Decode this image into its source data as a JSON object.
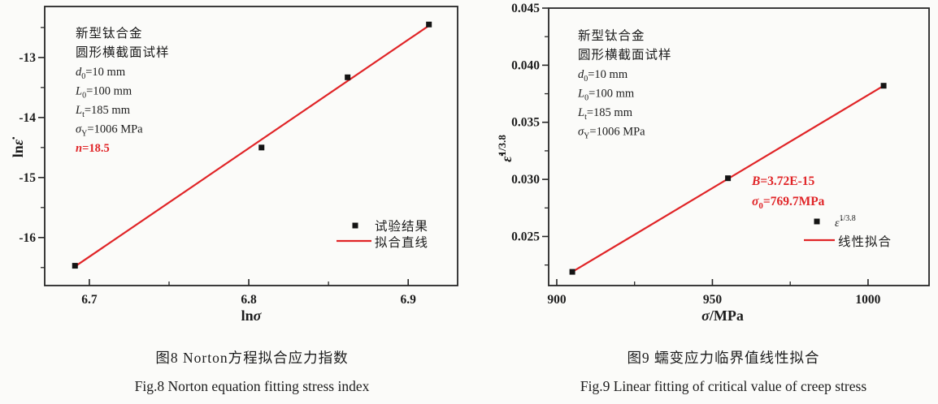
{
  "colors": {
    "accent_red": "#e02427",
    "marker_black": "#141414",
    "frame": "#262626",
    "text": "#1c1c1c"
  },
  "figures": [
    {
      "caption_cn": "图8  Norton方程拟合应力指数",
      "caption_en": "Fig.8  Norton equation fitting stress index"
    },
    {
      "caption_cn": "图9  蠕变应力临界值线性拟合",
      "caption_en": "Fig.9  Linear fitting of critical value of creep stress"
    }
  ],
  "chart_data": [
    {
      "type": "scatter",
      "title": "图8 Norton方程拟合应力指数",
      "xlabel": "lnσ",
      "ylabel": "lnε̇",
      "xlim": [
        6.672,
        6.931
      ],
      "ylim": [
        -16.8,
        -12.15
      ],
      "grid": false,
      "xticks": {
        "values": [
          6.7,
          6.8,
          6.9
        ],
        "labels": [
          "6.7",
          "6.8",
          "6.9"
        ],
        "minor": [
          6.75,
          6.85
        ]
      },
      "yticks": {
        "values": [
          -13,
          -14,
          -15,
          -16
        ],
        "labels": [
          "-13",
          "-14",
          "-15",
          "-16"
        ],
        "minor": [
          -12.5,
          -13.5,
          -14.5,
          -15.5,
          -16.5
        ]
      },
      "xlabel_segs": [
        {
          "t": "ln",
          "bd": 1
        },
        {
          "t": "σ",
          "bd": 1,
          "it": 1
        }
      ],
      "ylabel_segs": [
        {
          "t": "ln",
          "bd": 1
        },
        {
          "t": "ε̇",
          "bd": 1,
          "it": 1
        }
      ],
      "series": [
        {
          "name": "试验结果",
          "kind": "scatter",
          "marker": "square",
          "color": "#141414",
          "x": [
            6.691,
            6.808,
            6.862,
            6.913
          ],
          "y": [
            -16.47,
            -14.5,
            -13.33,
            -12.45
          ]
        },
        {
          "name": "拟合直线",
          "kind": "line",
          "color": "#e02427",
          "x": [
            6.69,
            6.9135
          ],
          "y": [
            -16.5,
            -12.46
          ]
        }
      ],
      "fit_parameter": "n=18.5",
      "info_lines": [
        {
          "cn": 1,
          "segs": [
            {
              "t": "新型钛合金"
            }
          ]
        },
        {
          "cn": 1,
          "segs": [
            {
              "t": "圆形横截面试样"
            }
          ]
        },
        {
          "segs": [
            {
              "t": "d",
              "it": 1
            },
            {
              "t": "0",
              "sub": 1
            },
            {
              "t": "=10 mm"
            }
          ]
        },
        {
          "segs": [
            {
              "t": "L",
              "it": 1
            },
            {
              "t": "0",
              "sub": 1
            },
            {
              "t": "=100 mm"
            }
          ]
        },
        {
          "segs": [
            {
              "t": "L",
              "it": 1
            },
            {
              "t": "t",
              "sub": 1
            },
            {
              "t": "=185 mm"
            }
          ]
        },
        {
          "segs": [
            {
              "t": "σ",
              "it": 1
            },
            {
              "t": "Y",
              "sub": 1
            },
            {
              "t": "=1006 MPa"
            }
          ]
        },
        {
          "color": "#e02427",
          "segs": [
            {
              "t": "n",
              "it": 1,
              "bd": 1
            },
            {
              "t": "=18.5",
              "bd": 1
            }
          ]
        }
      ],
      "legend": {
        "position": "lower right",
        "items": [
          {
            "kind": "marker",
            "cn": 1,
            "segs": [
              {
                "t": "试验结果"
              }
            ]
          },
          {
            "kind": "line",
            "cn": 1,
            "segs": [
              {
                "t": "拟合直线"
              }
            ]
          }
        ]
      }
    },
    {
      "type": "scatter",
      "title": "图9 蠕变应力临界值线性拟合",
      "xlabel": "σ/MPa",
      "ylabel": "ε̇^(1/3.8)",
      "xlim": [
        897.4,
        1019.6
      ],
      "ylim": [
        0.0207,
        0.045
      ],
      "grid": false,
      "xticks": {
        "values": [
          900,
          950,
          1000
        ],
        "labels": [
          "900",
          "950",
          "1000"
        ],
        "minor": [
          925,
          975
        ]
      },
      "yticks": {
        "values": [
          0.045,
          0.04,
          0.035,
          0.03,
          0.025
        ],
        "labels": [
          "0.045",
          "0.040",
          "0.035",
          "0.030",
          "0.025"
        ],
        "minor": [
          0.0425,
          0.0375,
          0.0325,
          0.0275,
          0.0225
        ]
      },
      "xlabel_segs": [
        {
          "t": "σ",
          "bd": 1,
          "it": 1
        },
        {
          "t": "/MPa",
          "bd": 1
        }
      ],
      "ylabel_segs": [
        {
          "t": "ε̇",
          "bd": 1,
          "it": 1
        },
        {
          "t": "1/3.8",
          "bd": 1,
          "sup": 1
        }
      ],
      "series": [
        {
          "name": "ε̇^(1/3.8)",
          "kind": "scatter",
          "marker": "square",
          "color": "#141414",
          "x": [
            905,
            955,
            1005
          ],
          "y": [
            0.0219,
            0.0301,
            0.0382
          ]
        },
        {
          "name": "线性拟合",
          "kind": "line",
          "color": "#e02427",
          "x": [
            905,
            1005
          ],
          "y": [
            0.0219,
            0.0382
          ]
        }
      ],
      "fit_parameters": [
        "B=3.72E-15",
        "σ0=769.7MPa"
      ],
      "info_lines": [
        {
          "cn": 1,
          "segs": [
            {
              "t": "新型钛合金"
            }
          ]
        },
        {
          "cn": 1,
          "segs": [
            {
              "t": "圆形横截面试样"
            }
          ]
        },
        {
          "segs": [
            {
              "t": "d",
              "it": 1
            },
            {
              "t": "0",
              "sub": 1
            },
            {
              "t": "=10 mm"
            }
          ]
        },
        {
          "segs": [
            {
              "t": "L",
              "it": 1
            },
            {
              "t": "0",
              "sub": 1
            },
            {
              "t": "=100 mm"
            }
          ]
        },
        {
          "segs": [
            {
              "t": "L",
              "it": 1
            },
            {
              "t": "t",
              "sub": 1
            },
            {
              "t": "=185 mm"
            }
          ]
        },
        {
          "segs": [
            {
              "t": "σ",
              "it": 1
            },
            {
              "t": "Y",
              "sub": 1
            },
            {
              "t": "=1006 MPa"
            }
          ]
        }
      ],
      "annotation_red": {
        "color": "#e02427",
        "lines": [
          {
            "segs": [
              {
                "t": "B",
                "it": 1,
                "bd": 1
              },
              {
                "t": "=3.72E-15",
                "bd": 1
              }
            ]
          },
          {
            "segs": [
              {
                "t": "σ",
                "it": 1,
                "bd": 1
              },
              {
                "t": "0",
                "bd": 1,
                "sub": 1
              },
              {
                "t": "=769.7MPa",
                "bd": 1
              }
            ]
          }
        ]
      },
      "legend": {
        "position": "right",
        "items": [
          {
            "kind": "marker",
            "segs": [
              {
                "t": "ε̇",
                "it": 1
              },
              {
                "t": "1/3.8",
                "sup": 1
              }
            ]
          },
          {
            "kind": "line",
            "cn": 1,
            "segs": [
              {
                "t": "线性拟合"
              }
            ]
          }
        ]
      }
    }
  ]
}
